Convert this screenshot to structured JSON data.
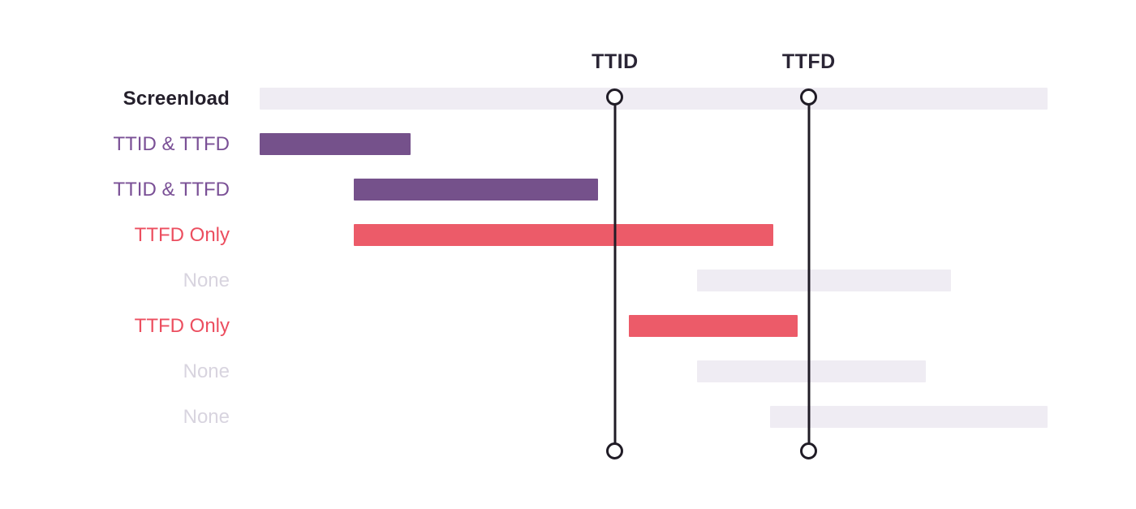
{
  "page": {
    "background": "#ffffff",
    "description": "Screenload span waterfall showing which spans contribute to TTID and TTFD"
  },
  "chart_data": {
    "type": "bar",
    "variant": "gantt-span-waterfall",
    "orientation": "horizontal",
    "grid": false,
    "axis": {
      "unit": "percent-of-screenload-duration",
      "min": 0,
      "max": 100
    },
    "markers": [
      {
        "id": "ttid",
        "label": "TTID",
        "position_pct": 45.1
      },
      {
        "id": "ttfd",
        "label": "TTFD",
        "position_pct": 69.7
      }
    ],
    "rows": [
      {
        "label": "Screenload",
        "category": "screenload",
        "start_pct": 0,
        "end_pct": 100
      },
      {
        "label": "TTID & TTFD",
        "category": "ttid-ttfd",
        "start_pct": 0,
        "end_pct": 19.2
      },
      {
        "label": "TTID & TTFD",
        "category": "ttid-ttfd",
        "start_pct": 11.9,
        "end_pct": 42.9
      },
      {
        "label": "TTFD Only",
        "category": "ttfd-only",
        "start_pct": 11.9,
        "end_pct": 65.2
      },
      {
        "label": "None",
        "category": "none",
        "start_pct": 55.5,
        "end_pct": 87.7
      },
      {
        "label": "TTFD Only",
        "category": "ttfd-only",
        "start_pct": 46.9,
        "end_pct": 68.3
      },
      {
        "label": "None",
        "category": "none",
        "start_pct": 55.5,
        "end_pct": 84.6
      },
      {
        "label": "None",
        "category": "none",
        "start_pct": 64.8,
        "end_pct": 100
      }
    ],
    "colors": {
      "screenload_bar": "#EFECF3",
      "ttid_ttfd_bar": "#75518B",
      "ttfd_only_bar": "#EC5B69",
      "none_bar": "#EFECF3",
      "screenload_label": "#241F2B",
      "ttid_ttfd_label": "#7A5096",
      "ttfd_only_label": "#EC4E5F",
      "none_label": "#D8D4DF",
      "marker_line": "#201C26",
      "marker_label": "#2A2535"
    }
  }
}
